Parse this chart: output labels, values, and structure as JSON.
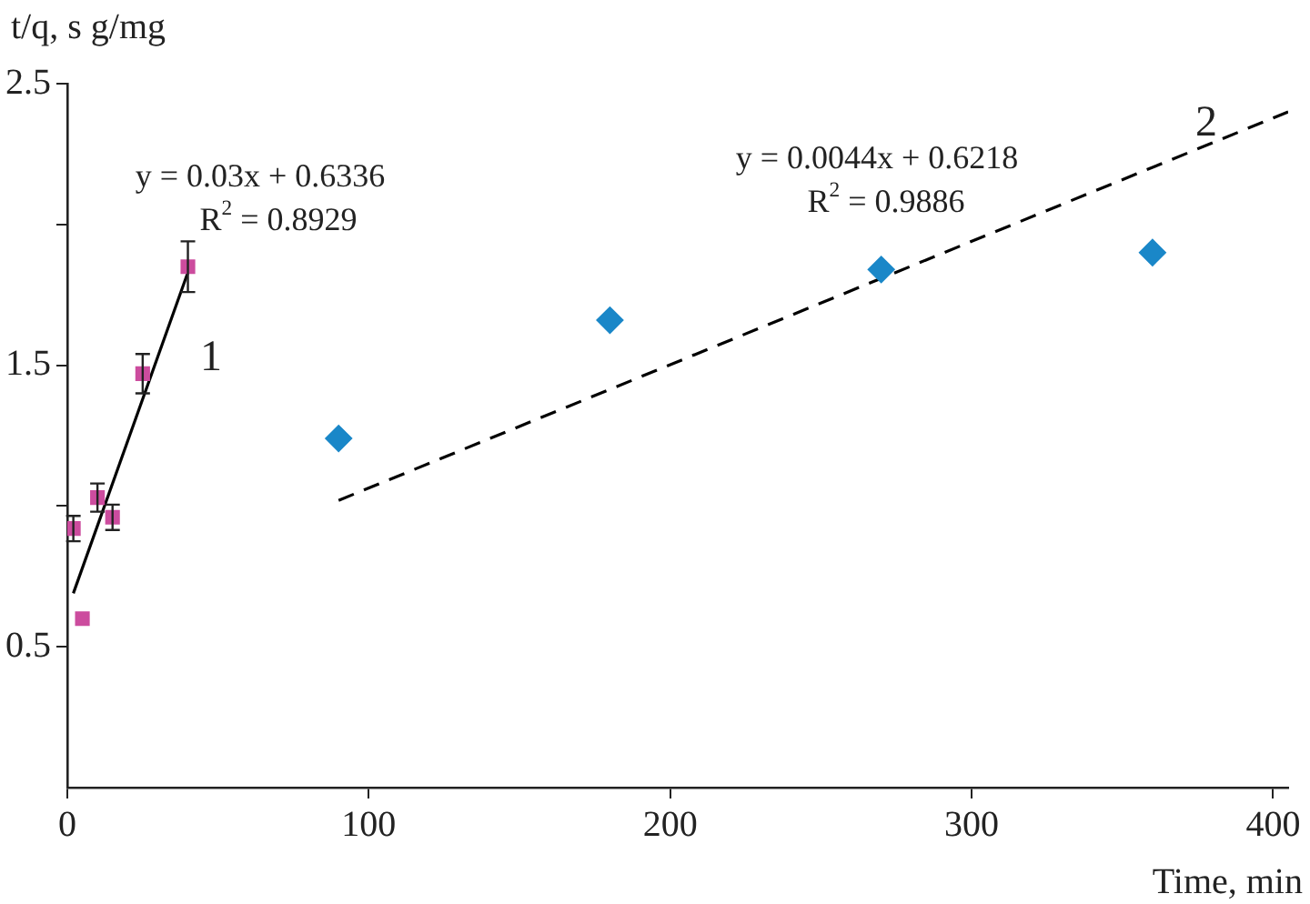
{
  "chart_data": {
    "type": "scatter",
    "xlabel": "Time, min",
    "ylabel": "t/q, s g/mg",
    "xlim": [
      0,
      405
    ],
    "xticks": [
      0,
      100,
      200,
      300,
      400
    ],
    "ylim": [
      0,
      2.5
    ],
    "yticks": [
      {
        "value": 0.5,
        "label": "0.5"
      },
      {
        "value": 1,
        "label": null
      },
      {
        "value": 1.5,
        "label": "1.5"
      },
      {
        "value": 2,
        "label": null
      },
      {
        "value": 2.5,
        "label": "2.5"
      }
    ],
    "grid": false,
    "legend": false,
    "series": [
      {
        "color": "#cc4c9e",
        "marker": "square",
        "x": [
          2,
          5,
          10,
          15,
          25,
          40
        ],
        "values": [
          0.92,
          0.6,
          1.03,
          0.96,
          1.47,
          1.85
        ],
        "errors": [
          0.045,
          null,
          0.05,
          0.045,
          0.07,
          0.09
        ]
      },
      {
        "color": "#1a87c8",
        "marker": "diamond",
        "x": [
          90,
          180,
          270,
          360
        ],
        "values": [
          1.24,
          1.66,
          1.84,
          1.9
        ]
      },
      {
        "type": "line",
        "color": "#000000",
        "marker": "none",
        "line_style": "solid",
        "x": [
          2,
          40
        ],
        "values": [
          0.69,
          1.83
        ]
      },
      {
        "type": "line",
        "color": "#000000",
        "marker": "none",
        "line_style": "dashed",
        "x": [
          90,
          405
        ],
        "values": [
          1.02,
          2.4
        ]
      }
    ],
    "annotations": [
      "y = 0.03x + 0.6336",
      "R$^{2}$ = 0.8929",
      "1",
      "y = 0.0044x + 0.6218",
      "R$^{2}$ = 0.9886",
      "2"
    ]
  }
}
